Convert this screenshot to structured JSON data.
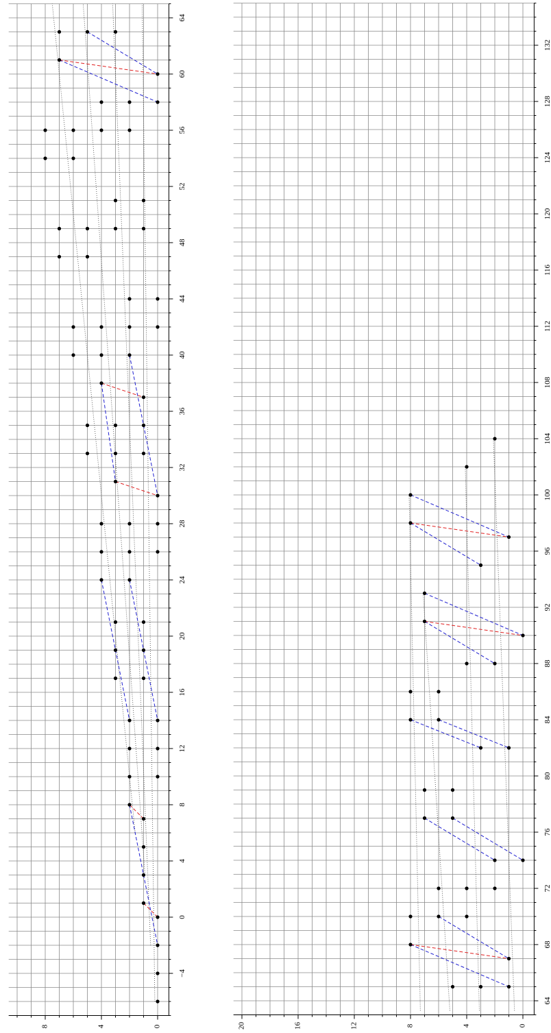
{
  "chart_data": [
    {
      "type": "scatter",
      "xlim": [
        -7,
        65
      ],
      "ylim": [
        -0.8,
        10.6
      ],
      "xticks": [
        {
          "value": -4,
          "label": "−4"
        },
        0,
        4,
        8,
        12,
        16,
        20,
        24,
        28,
        32,
        36,
        40,
        44,
        48,
        52,
        56,
        60,
        64
      ],
      "yticks": [
        0,
        4,
        8
      ],
      "minor_step": 1,
      "grid": true,
      "color": "#000000",
      "x": [
        -6,
        -4,
        -2,
        0,
        1,
        3,
        5,
        7,
        8,
        10,
        10,
        12,
        12,
        14,
        14,
        17,
        17,
        19,
        19,
        21,
        21,
        24,
        24,
        26,
        26,
        26,
        28,
        28,
        28,
        30,
        31,
        33,
        33,
        33,
        35,
        35,
        35,
        37,
        38,
        40,
        40,
        40,
        42,
        42,
        42,
        42,
        44,
        44,
        47,
        47,
        49,
        49,
        49,
        49,
        51,
        51,
        54,
        54,
        56,
        56,
        56,
        56,
        58,
        58,
        58,
        60,
        61,
        63,
        63,
        63
      ],
      "values": [
        0,
        0,
        0,
        0,
        1,
        1,
        1,
        1,
        2,
        2,
        0,
        2,
        0,
        2,
        0,
        3,
        1,
        3,
        1,
        3,
        1,
        4,
        2,
        4,
        2,
        0,
        4,
        2,
        0,
        0,
        3,
        5,
        3,
        1,
        5,
        3,
        1,
        1,
        4,
        6,
        4,
        2,
        6,
        4,
        2,
        0,
        2,
        0,
        7,
        5,
        7,
        5,
        3,
        1,
        3,
        1,
        8,
        6,
        8,
        6,
        4,
        2,
        4,
        2,
        0,
        0,
        7,
        7,
        5,
        3
      ],
      "lines": [
        {
          "color": "#555555",
          "dash": "dotted",
          "x": [
            -6,
            65
          ],
          "values": [
            0.2,
            1.1
          ]
        },
        {
          "color": "#555555",
          "dash": "dotted",
          "x": [
            -2,
            65
          ],
          "values": [
            0.5,
            3.2
          ]
        },
        {
          "color": "#555555",
          "dash": "dotted",
          "x": [
            3,
            65
          ],
          "values": [
            0.9,
            5.3
          ]
        },
        {
          "color": "#555555",
          "dash": "dotted",
          "x": [
            6,
            65
          ],
          "values": [
            1.6,
            7.5
          ]
        },
        {
          "color": "#2020d0",
          "dash": "dashed",
          "x": [
            63,
            60
          ],
          "values": [
            5,
            0
          ]
        },
        {
          "color": "#2020d0",
          "dash": "dashed",
          "x": [
            61,
            58
          ],
          "values": [
            7,
            0
          ]
        },
        {
          "color": "#2020d0",
          "dash": "dashed",
          "x": [
            40,
            30
          ],
          "values": [
            2,
            0
          ]
        },
        {
          "color": "#2020d0",
          "dash": "dashed",
          "x": [
            38,
            31
          ],
          "values": [
            4,
            3
          ]
        },
        {
          "color": "#2020d0",
          "dash": "dashed",
          "x": [
            24,
            14
          ],
          "values": [
            4,
            2
          ]
        },
        {
          "color": "#2020d0",
          "dash": "dashed",
          "x": [
            24,
            14
          ],
          "values": [
            2,
            0
          ]
        },
        {
          "color": "#2020d0",
          "dash": "dashed",
          "x": [
            8,
            -2
          ],
          "values": [
            2,
            0
          ]
        },
        {
          "color": "#e02020",
          "dash": "dashed",
          "x": [
            61,
            60
          ],
          "values": [
            7,
            0
          ]
        },
        {
          "color": "#e02020",
          "dash": "dashed",
          "x": [
            38,
            37
          ],
          "values": [
            4,
            1
          ]
        },
        {
          "color": "#e02020",
          "dash": "dashed",
          "x": [
            31,
            30
          ],
          "values": [
            3,
            0
          ]
        },
        {
          "color": "#e02020",
          "dash": "dashed",
          "x": [
            8,
            7
          ],
          "values": [
            2,
            1
          ]
        },
        {
          "color": "#e02020",
          "dash": "dashed",
          "x": [
            1,
            0
          ],
          "values": [
            1,
            0
          ]
        }
      ]
    },
    {
      "type": "scatter",
      "xlim": [
        63,
        135
      ],
      "ylim": [
        -0.8,
        20.6
      ],
      "xticks": [
        64,
        68,
        72,
        76,
        80,
        84,
        88,
        92,
        96,
        100,
        104,
        108,
        112,
        116,
        120,
        124,
        128,
        132
      ],
      "yticks": [
        0,
        4,
        8,
        12,
        16,
        20
      ],
      "minor_step": 1,
      "grid": true,
      "color": "#000000",
      "x": [
        65,
        65,
        65,
        67,
        68,
        70,
        70,
        70,
        72,
        72,
        72,
        74,
        74,
        77,
        77,
        79,
        79,
        82,
        82,
        84,
        84,
        86,
        86,
        88,
        88,
        90,
        91,
        93,
        95,
        97,
        98,
        100,
        102,
        104
      ],
      "values": [
        5,
        3,
        1,
        1,
        8,
        8,
        6,
        4,
        6,
        4,
        2,
        2,
        0,
        7,
        5,
        7,
        5,
        3,
        1,
        8,
        6,
        8,
        6,
        4,
        2,
        0,
        7,
        7,
        3,
        1,
        8,
        8,
        4,
        2
      ],
      "lines": [
        {
          "color": "#555555",
          "dash": "dotted",
          "x": [
            63.3,
            100
          ],
          "values": [
            7.3,
            8.1
          ]
        },
        {
          "color": "#555555",
          "dash": "dotted",
          "x": [
            63.3,
            93
          ],
          "values": [
            5.2,
            7.1
          ]
        },
        {
          "color": "#555555",
          "dash": "dotted",
          "x": [
            63.3,
            102
          ],
          "values": [
            3.1,
            4.1
          ]
        },
        {
          "color": "#555555",
          "dash": "dotted",
          "x": [
            63.3,
            104
          ],
          "values": [
            0.6,
            2.1
          ]
        },
        {
          "color": "#2020d0",
          "dash": "dashed",
          "x": [
            100,
            97
          ],
          "values": [
            8,
            1
          ]
        },
        {
          "color": "#2020d0",
          "dash": "dashed",
          "x": [
            98,
            95
          ],
          "values": [
            8,
            3
          ]
        },
        {
          "color": "#2020d0",
          "dash": "dashed",
          "x": [
            93,
            90
          ],
          "values": [
            7,
            0
          ]
        },
        {
          "color": "#2020d0",
          "dash": "dashed",
          "x": [
            91,
            88
          ],
          "values": [
            7,
            2
          ]
        },
        {
          "color": "#2020d0",
          "dash": "dashed",
          "x": [
            84,
            82
          ],
          "values": [
            8,
            3
          ]
        },
        {
          "color": "#2020d0",
          "dash": "dashed",
          "x": [
            84,
            82
          ],
          "values": [
            6,
            1
          ]
        },
        {
          "color": "#2020d0",
          "dash": "dashed",
          "x": [
            77,
            74
          ],
          "values": [
            7,
            2
          ]
        },
        {
          "color": "#2020d0",
          "dash": "dashed",
          "x": [
            77,
            74
          ],
          "values": [
            5,
            0
          ]
        },
        {
          "color": "#2020d0",
          "dash": "dashed",
          "x": [
            70,
            67
          ],
          "values": [
            6,
            1
          ]
        },
        {
          "color": "#2020d0",
          "dash": "dashed",
          "x": [
            68,
            65
          ],
          "values": [
            8,
            1
          ]
        },
        {
          "color": "#e02020",
          "dash": "dashed",
          "x": [
            98,
            97
          ],
          "values": [
            8,
            1
          ]
        },
        {
          "color": "#e02020",
          "dash": "dashed",
          "x": [
            91,
            90
          ],
          "values": [
            7,
            0
          ]
        },
        {
          "color": "#e02020",
          "dash": "dashed",
          "x": [
            68,
            67
          ],
          "values": [
            8,
            1
          ]
        }
      ]
    }
  ]
}
